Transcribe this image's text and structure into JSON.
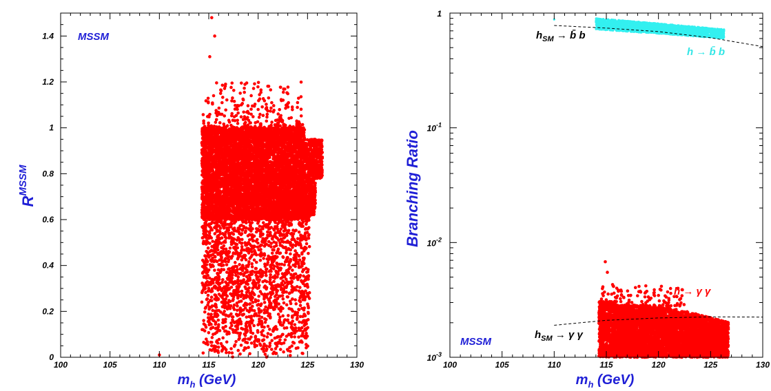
{
  "chart_data": [
    {
      "type": "scatter",
      "title": "",
      "xlabel": "m_h (GeV)",
      "ylabel": "R^MSSM",
      "xlim": [
        100,
        130
      ],
      "ylim": [
        0,
        1.5
      ],
      "x_ticks": [
        "100",
        "105",
        "110",
        "115",
        "120",
        "125",
        "130"
      ],
      "y_ticks": [
        "0",
        "0.2",
        "0.4",
        "0.6",
        "0.8",
        "1",
        "1.2",
        "1.4"
      ],
      "annotations": [
        {
          "text": "MSSM",
          "color": "#1f1fd6"
        }
      ],
      "series": [
        {
          "color": "#ff0000",
          "region": {
            "x_range": [
              114.3,
              126.5
            ],
            "y_dense": [
              0.6,
              1.0
            ],
            "y_sparse": [
              0.0,
              0.6
            ],
            "y_top_outliers": [
              1.0,
              1.48
            ]
          },
          "points": [
            [
              115.3,
              1.48
            ],
            [
              115.6,
              1.4
            ],
            [
              115.1,
              1.31
            ],
            [
              116.2,
              1.15
            ],
            [
              117.4,
              1.13
            ],
            [
              120.0,
              1.08
            ],
            [
              118.3,
              1.1
            ],
            [
              110.0,
              0.01
            ]
          ]
        }
      ],
      "grid": false
    },
    {
      "type": "scatter",
      "title": "",
      "xlabel": "m_h (GeV)",
      "ylabel": "Branching Ratio",
      "xlim": [
        100,
        130
      ],
      "ylim": [
        0.001,
        1
      ],
      "yscale": "log",
      "x_ticks": [
        "100",
        "105",
        "110",
        "115",
        "120",
        "125",
        "130"
      ],
      "y_ticks": [
        {
          "value": 1,
          "base": "1",
          "exp": ""
        },
        {
          "value": 0.1,
          "base": "10",
          "exp": "-1"
        },
        {
          "value": 0.01,
          "base": "10",
          "exp": "-2"
        },
        {
          "value": 0.001,
          "base": "10",
          "exp": "-3"
        }
      ],
      "series": [
        {
          "label": "h → b̄ b",
          "color": "#33f0f0",
          "x_range": [
            114.0,
            126.3
          ],
          "y_range": [
            0.6,
            0.9
          ]
        },
        {
          "label": "h → γ γ",
          "color": "#ff0000",
          "x_range": [
            114.3,
            126.7
          ],
          "y_range": [
            0.001,
            0.0068
          ]
        }
      ],
      "reference_curves": [
        {
          "label": "h_SM → b̄ b",
          "x": [
            110,
            115,
            120,
            125,
            130
          ],
          "y": [
            0.78,
            0.74,
            0.69,
            0.61,
            0.51
          ],
          "style": "dashed"
        },
        {
          "label": "h_SM → γ γ",
          "x": [
            110,
            115,
            120,
            125,
            130
          ],
          "y": [
            0.0019,
            0.0021,
            0.0022,
            0.00225,
            0.00224
          ],
          "style": "dashed"
        }
      ],
      "annotations": [
        {
          "text": "h → b̄ b",
          "color": "#33e6e6"
        },
        {
          "text": "h → γ γ",
          "color": "#ff0000"
        },
        {
          "text": "h_SM → b̄ b",
          "color": "#000000"
        },
        {
          "text": "h_SM → γ γ",
          "color": "#000000"
        },
        {
          "text": "MSSM",
          "color": "#1f1fd6"
        }
      ],
      "grid": false
    }
  ]
}
